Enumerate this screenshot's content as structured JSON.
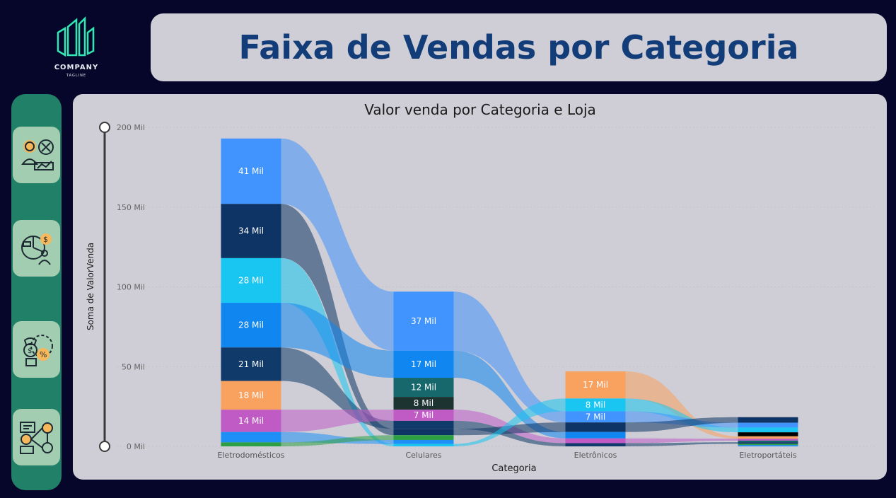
{
  "logo": {
    "brand": "COMPANY",
    "tagline": "TAGLINE"
  },
  "header": {
    "title": "Faixa de Vendas por Categoria"
  },
  "sidebar": {
    "items": [
      {
        "icon": "sales-analyst-icon"
      },
      {
        "icon": "finance-dashboard-icon"
      },
      {
        "icon": "money-percent-icon"
      },
      {
        "icon": "team-network-icon"
      }
    ]
  },
  "colors": {
    "background": "#05062a",
    "panel": "#cfced6",
    "title": "#123d78",
    "sidebar": "#208068",
    "nav_button": "#a3cdb1"
  },
  "chart_data": {
    "type": "bar",
    "subtype": "ribbon",
    "title": "Valor venda por Categoria e Loja",
    "xlabel": "Categoria",
    "ylabel": "Soma de ValorVenda",
    "ylim": [
      0,
      200000
    ],
    "yticks": [
      {
        "value": 0,
        "label": "0 Mil"
      },
      {
        "value": 50000,
        "label": "50 Mil"
      },
      {
        "value": 100000,
        "label": "100 Mil"
      },
      {
        "value": 150000,
        "label": "150 Mil"
      },
      {
        "value": 200000,
        "label": "200 Mil"
      }
    ],
    "categories": [
      "Eletrodomésticos",
      "Celulares",
      "Eletrônicos",
      "Eletroportáteis"
    ],
    "series_colors": {
      "s1": "#4194fe",
      "s2": "#0d3465",
      "s3": "#18c6f1",
      "s4": "#0f86f0",
      "s5": "#103a6a",
      "s6": "#f9a15e",
      "s7": "#c05bc6",
      "s8": "#1f8ff8",
      "s9": "#2ea044",
      "s10": "#17686d",
      "s11": "#1c3332",
      "s12": "#000000"
    },
    "stacks": [
      [
        {
          "series": "s1",
          "value": 41000,
          "label": "41 Mil"
        },
        {
          "series": "s2",
          "value": 34000,
          "label": "34 Mil"
        },
        {
          "series": "s3",
          "value": 28000,
          "label": "28 Mil"
        },
        {
          "series": "s4",
          "value": 28000,
          "label": "28 Mil"
        },
        {
          "series": "s5",
          "value": 21000,
          "label": "21 Mil"
        },
        {
          "series": "s6",
          "value": 18000,
          "label": "18 Mil"
        },
        {
          "series": "s7",
          "value": 14000,
          "label": "14 Mil"
        },
        {
          "series": "s8",
          "value": 6500,
          "label": ""
        },
        {
          "series": "s9",
          "value": 2500,
          "label": ""
        }
      ],
      [
        {
          "series": "s1",
          "value": 37000,
          "label": "37 Mil"
        },
        {
          "series": "s4",
          "value": 17000,
          "label": "17 Mil"
        },
        {
          "series": "s10",
          "value": 12000,
          "label": "12 Mil"
        },
        {
          "series": "s11",
          "value": 8000,
          "label": "8 Mil"
        },
        {
          "series": "s7",
          "value": 7000,
          "label": "7 Mil"
        },
        {
          "series": "s5",
          "value": 5000,
          "label": ""
        },
        {
          "series": "s2",
          "value": 4000,
          "label": ""
        },
        {
          "series": "s9",
          "value": 3000,
          "label": ""
        },
        {
          "series": "s8",
          "value": 2500,
          "label": ""
        },
        {
          "series": "s3",
          "value": 1500,
          "label": ""
        }
      ],
      [
        {
          "series": "s6",
          "value": 17000,
          "label": "17 Mil"
        },
        {
          "series": "s3",
          "value": 8000,
          "label": "8 Mil"
        },
        {
          "series": "s1",
          "value": 7000,
          "label": "7 Mil"
        },
        {
          "series": "s2",
          "value": 6000,
          "label": ""
        },
        {
          "series": "s4",
          "value": 4000,
          "label": ""
        },
        {
          "series": "s7",
          "value": 3000,
          "label": ""
        },
        {
          "series": "s5",
          "value": 2000,
          "label": ""
        }
      ],
      [
        {
          "series": "s2",
          "value": 3500,
          "label": ""
        },
        {
          "series": "s1",
          "value": 3000,
          "label": ""
        },
        {
          "series": "s3",
          "value": 3000,
          "label": ""
        },
        {
          "series": "s12",
          "value": 2500,
          "label": ""
        },
        {
          "series": "s6",
          "value": 1500,
          "label": ""
        },
        {
          "series": "s7",
          "value": 1200,
          "label": ""
        },
        {
          "series": "s10",
          "value": 1000,
          "label": ""
        },
        {
          "series": "s5",
          "value": 1000,
          "label": ""
        },
        {
          "series": "s9",
          "value": 800,
          "label": ""
        },
        {
          "series": "s8",
          "value": 800,
          "label": ""
        }
      ]
    ],
    "grid": true,
    "legend": "none"
  }
}
